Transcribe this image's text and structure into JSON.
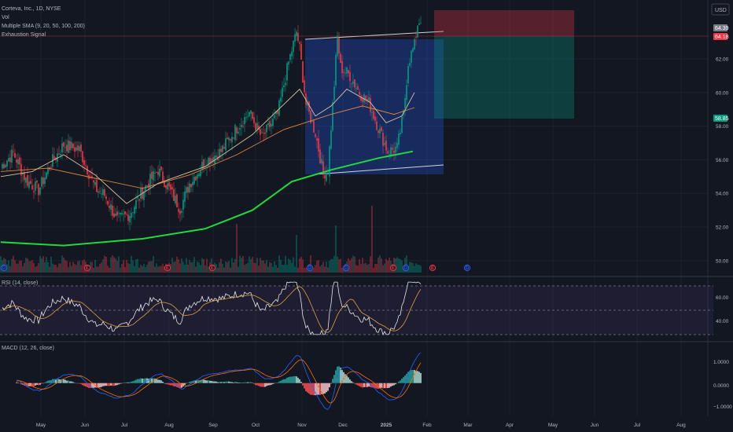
{
  "legend": {
    "symbol": "Corteva, Inc., 1D, NYSE",
    "vol": "Vol",
    "sma": "Multiple SMA (9, 20, 50, 100, 200)",
    "exhaustion": "Exhaustion Signal"
  },
  "currency_button": "USD",
  "price_tags": [
    {
      "text": "64.39",
      "bg": "#787b86"
    },
    {
      "text": "64.18",
      "bg": "#f23645"
    },
    {
      "text": "58.85",
      "bg": "#089981"
    }
  ],
  "rsi_label": "RSI (14, close)",
  "macd_label": "MACD (12, 26, close)",
  "event_markers": [
    {
      "text": "D",
      "color": "#2962ff"
    },
    {
      "text": "E",
      "color": "#f23645"
    },
    {
      "text": "E",
      "color": "#f23645"
    },
    {
      "text": "E",
      "color": "#f23645"
    },
    {
      "text": "D",
      "color": "#2962ff"
    },
    {
      "text": "D",
      "color": "#2962ff"
    },
    {
      "text": "E",
      "color": "#f23645"
    },
    {
      "text": "D",
      "color": "#2962ff"
    },
    {
      "text": "D",
      "color": "#2962ff"
    },
    {
      "text": "E",
      "color": "#f23645"
    },
    {
      "text": "D",
      "color": "#2962ff"
    }
  ],
  "colors": {
    "up": "#089981",
    "down": "#f23645",
    "sma200": "#22d93b",
    "sma_a": "#d8c39a",
    "sma_b": "#e0843c",
    "rsi": "#e6e6e6",
    "rsi_ma": "#e0a040",
    "macd": "#2962ff",
    "signal": "#ff6d00",
    "channel": "#2962ff"
  },
  "chart_data": {
    "type": "candlestick",
    "symbol": "CTVA",
    "timeframe": "1D",
    "price_axis": {
      "ticks": [
        "62.00",
        "60.00",
        "58.00",
        "56.00",
        "54.00",
        "52.00",
        "50.00"
      ],
      "ylim": [
        49.2,
        65.5
      ]
    },
    "time_axis": {
      "ticks": [
        "May",
        "Jun",
        "Jul",
        "Aug",
        "Sep",
        "Oct",
        "Nov",
        "Dec",
        "2025",
        "Feb",
        "Mar",
        "Apr",
        "May",
        "Jun",
        "Jul",
        "Aug"
      ]
    },
    "close_series_key": [
      [
        0,
        55.6
      ],
      [
        8,
        56.4
      ],
      [
        16,
        54.8
      ],
      [
        24,
        54.2
      ],
      [
        32,
        55.8
      ],
      [
        40,
        56.9
      ],
      [
        50,
        56.6
      ],
      [
        60,
        54.3
      ],
      [
        66,
        53.9
      ],
      [
        74,
        52.4
      ],
      [
        82,
        52.8
      ],
      [
        92,
        54.4
      ],
      [
        100,
        55.4
      ],
      [
        108,
        54.1
      ],
      [
        114,
        53.1
      ],
      [
        120,
        54.6
      ],
      [
        130,
        55.9
      ],
      [
        140,
        56.5
      ],
      [
        150,
        57.9
      ],
      [
        158,
        58.8
      ],
      [
        166,
        57.3
      ],
      [
        176,
        58.7
      ],
      [
        183,
        61.8
      ],
      [
        188,
        63.6
      ],
      [
        190,
        62.6
      ],
      [
        194,
        59.3
      ],
      [
        200,
        57.6
      ],
      [
        205,
        55.2
      ],
      [
        208,
        55.4
      ],
      [
        212,
        60.5
      ],
      [
        214,
        63.3
      ],
      [
        216,
        61.5
      ],
      [
        222,
        61.0
      ],
      [
        228,
        60.0
      ],
      [
        234,
        59.4
      ],
      [
        240,
        57.9
      ],
      [
        246,
        56.5
      ],
      [
        252,
        56.7
      ],
      [
        256,
        58.7
      ],
      [
        259,
        61.8
      ],
      [
        263,
        62.8
      ],
      [
        265,
        64.1
      ],
      [
        267,
        64.4
      ]
    ],
    "sma200": [
      [
        0,
        51.1
      ],
      [
        40,
        50.9
      ],
      [
        90,
        51.3
      ],
      [
        130,
        51.9
      ],
      [
        160,
        53.0
      ],
      [
        185,
        54.7
      ],
      [
        210,
        55.4
      ],
      [
        240,
        56.1
      ],
      [
        262,
        56.5
      ]
    ],
    "sma_fast": [
      [
        0,
        55.0
      ],
      [
        20,
        55.3
      ],
      [
        40,
        56.3
      ],
      [
        60,
        55.1
      ],
      [
        80,
        53.4
      ],
      [
        100,
        54.6
      ],
      [
        130,
        55.6
      ],
      [
        160,
        57.5
      ],
      [
        190,
        60.2
      ],
      [
        200,
        58.6
      ],
      [
        210,
        59.2
      ],
      [
        220,
        60.2
      ],
      [
        235,
        59.4
      ],
      [
        245,
        58.2
      ],
      [
        255,
        58.6
      ],
      [
        263,
        60.0
      ]
    ],
    "sma_slow": [
      [
        0,
        55.3
      ],
      [
        30,
        55.5
      ],
      [
        60,
        54.9
      ],
      [
        90,
        54.3
      ],
      [
        120,
        55.1
      ],
      [
        150,
        56.3
      ],
      [
        180,
        57.8
      ],
      [
        210,
        58.7
      ],
      [
        230,
        59.2
      ],
      [
        250,
        58.7
      ],
      [
        263,
        59.1
      ]
    ],
    "rsi": {
      "ticks": [
        "60.00",
        "40.00"
      ],
      "range": [
        25,
        80
      ]
    },
    "macd": {
      "ticks": [
        "1.0000",
        "0.0000",
        "−1.0000"
      ],
      "range": [
        -1.3,
        1.6
      ]
    }
  }
}
